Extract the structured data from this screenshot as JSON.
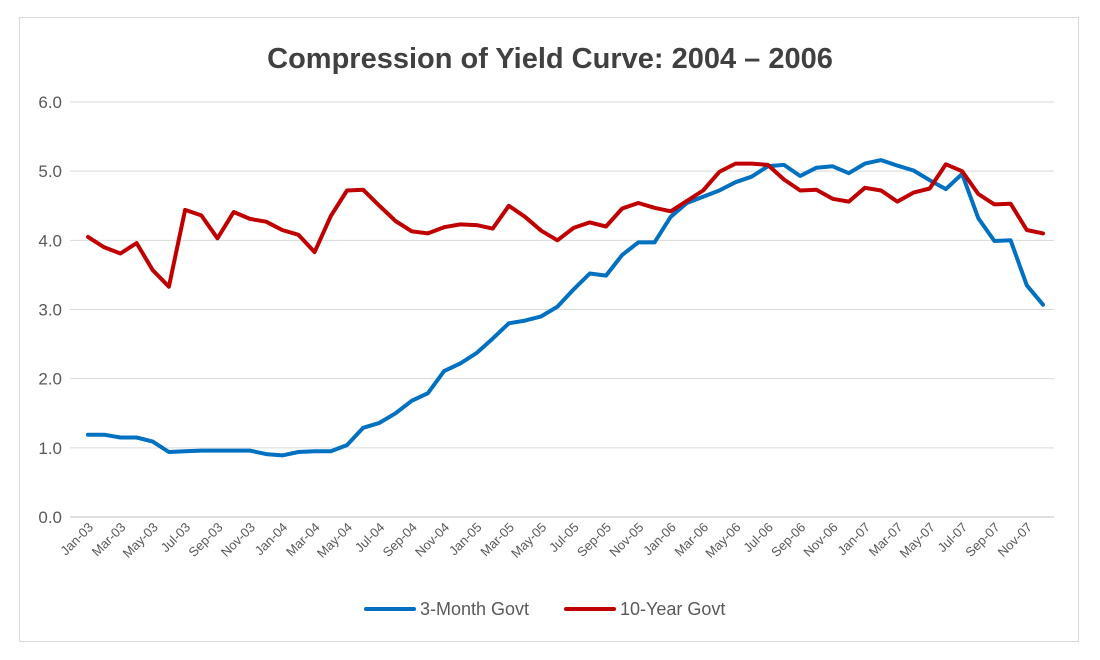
{
  "chart_data": {
    "type": "line",
    "title": "Compression of Yield Curve:  2004 – 2006",
    "xlabel": "",
    "ylabel": "",
    "ylim": [
      0,
      6
    ],
    "yticks": [
      "0.0",
      "1.0",
      "2.0",
      "3.0",
      "4.0",
      "5.0",
      "6.0"
    ],
    "grid": true,
    "legend_position": "bottom",
    "x": [
      "Jan-03",
      "Feb-03",
      "Mar-03",
      "Apr-03",
      "May-03",
      "Jun-03",
      "Jul-03",
      "Aug-03",
      "Sep-03",
      "Oct-03",
      "Nov-03",
      "Dec-03",
      "Jan-04",
      "Feb-04",
      "Mar-04",
      "Apr-04",
      "May-04",
      "Jun-04",
      "Jul-04",
      "Aug-04",
      "Sep-04",
      "Oct-04",
      "Nov-04",
      "Dec-04",
      "Jan-05",
      "Feb-05",
      "Mar-05",
      "Apr-05",
      "May-05",
      "Jun-05",
      "Jul-05",
      "Aug-05",
      "Sep-05",
      "Oct-05",
      "Nov-05",
      "Dec-05",
      "Jan-06",
      "Feb-06",
      "Mar-06",
      "Apr-06",
      "May-06",
      "Jun-06",
      "Jul-06",
      "Aug-06",
      "Sep-06",
      "Oct-06",
      "Nov-06",
      "Dec-06",
      "Jan-07",
      "Feb-07",
      "Mar-07",
      "Apr-07",
      "May-07",
      "Jun-07",
      "Jul-07",
      "Aug-07",
      "Sep-07",
      "Oct-07",
      "Nov-07",
      "Dec-07"
    ],
    "x_tick_labels": [
      "Jan-03",
      "Mar-03",
      "May-03",
      "Jul-03",
      "Sep-03",
      "Nov-03",
      "Jan-04",
      "Mar-04",
      "May-04",
      "Jul-04",
      "Sep-04",
      "Nov-04",
      "Jan-05",
      "Mar-05",
      "May-05",
      "Jul-05",
      "Sep-05",
      "Nov-05",
      "Jan-06",
      "Mar-06",
      "May-06",
      "Jul-06",
      "Sep-06",
      "Nov-06",
      "Jan-07",
      "Mar-07",
      "May-07",
      "Jul-07",
      "Sep-07",
      "Nov-07"
    ],
    "series": [
      {
        "name": "3-Month Govt",
        "color": "#0070C0",
        "values": [
          1.19,
          1.19,
          1.15,
          1.15,
          1.09,
          0.94,
          0.95,
          0.96,
          0.96,
          0.96,
          0.96,
          0.91,
          0.89,
          0.94,
          0.95,
          0.95,
          1.04,
          1.29,
          1.36,
          1.5,
          1.68,
          1.79,
          2.11,
          2.22,
          2.37,
          2.58,
          2.8,
          2.84,
          2.9,
          3.04,
          3.29,
          3.52,
          3.49,
          3.79,
          3.97,
          3.97,
          4.34,
          4.54,
          4.63,
          4.72,
          4.84,
          4.92,
          5.07,
          5.09,
          4.93,
          5.05,
          5.07,
          4.97,
          5.11,
          5.16,
          5.08,
          5.01,
          4.87,
          4.74,
          4.96,
          4.32,
          3.99,
          4.0,
          3.35,
          3.07
        ]
      },
      {
        "name": "10-Year Govt",
        "color": "#C00000",
        "values": [
          4.05,
          3.9,
          3.81,
          3.96,
          3.57,
          3.33,
          4.44,
          4.36,
          4.03,
          4.41,
          4.31,
          4.27,
          4.15,
          4.08,
          3.83,
          4.35,
          4.72,
          4.73,
          4.5,
          4.28,
          4.13,
          4.1,
          4.19,
          4.23,
          4.22,
          4.17,
          4.5,
          4.34,
          4.14,
          4.0,
          4.18,
          4.26,
          4.2,
          4.46,
          4.54,
          4.47,
          4.42,
          4.57,
          4.72,
          4.99,
          5.11,
          5.11,
          5.09,
          4.88,
          4.72,
          4.73,
          4.6,
          4.56,
          4.76,
          4.72,
          4.56,
          4.69,
          4.75,
          5.1,
          5.0,
          4.67,
          4.52,
          4.53,
          4.15,
          4.1
        ]
      }
    ]
  }
}
